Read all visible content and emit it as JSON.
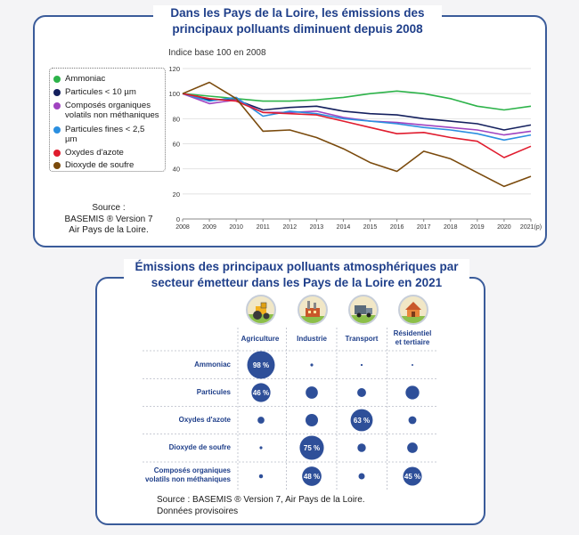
{
  "chart1": {
    "title": "Dans les Pays de la Loire, les émissions des principaux polluants diminuent depuis 2008",
    "subtitle": "Indice base 100 en 2008",
    "source": "Source :\nBASEMIS ® Version 7\nAir Pays de la Loire."
  },
  "chart2": {
    "title": "Émissions des principaux polluants atmosphériques par secteur émetteur dans les Pays de la Loire en 2021",
    "source": "Source : BASEMIS ® Version 7, Air Pays de la Loire.\nDonnées provisoires"
  },
  "chart_data": [
    {
      "type": "line",
      "title": "Dans les Pays de la Loire, les émissions des principaux polluants diminuent depuis 2008",
      "ylabel": "Indice base 100 en 2008",
      "x": [
        "2008",
        "2009",
        "2010",
        "2011",
        "2012",
        "2013",
        "2014",
        "2015",
        "2016",
        "2017",
        "2018",
        "2019",
        "2020",
        "2021(p)"
      ],
      "ylim": [
        0,
        120
      ],
      "yticks": [
        0,
        20,
        40,
        60,
        80,
        100,
        120
      ],
      "series": [
        {
          "name": "Ammoniac",
          "color": "#2db34a",
          "values": [
            100,
            98,
            96,
            94,
            94,
            95,
            97,
            100,
            102,
            100,
            96,
            90,
            87,
            90
          ]
        },
        {
          "name": "Particules < 10 µm",
          "color": "#14205e",
          "values": [
            100,
            95,
            95,
            87,
            89,
            90,
            86,
            84,
            83,
            80,
            78,
            76,
            71,
            75
          ]
        },
        {
          "name": "Composés organiques volatils non méthaniques",
          "color": "#a044c0",
          "values": [
            100,
            92,
            95,
            85,
            85,
            86,
            81,
            78,
            77,
            75,
            73,
            71,
            67,
            70
          ]
        },
        {
          "name": "Particules fines < 2,5 µm",
          "color": "#2b8fe0",
          "values": [
            100,
            94,
            97,
            82,
            86,
            84,
            80,
            78,
            76,
            73,
            71,
            68,
            63,
            67
          ]
        },
        {
          "name": "Oxydes d'azote",
          "color": "#e01c2e",
          "values": [
            100,
            96,
            94,
            85,
            84,
            83,
            78,
            73,
            68,
            69,
            65,
            62,
            49,
            58
          ]
        },
        {
          "name": "Dioxyde de soufre",
          "color": "#7a4a0c",
          "values": [
            100,
            109,
            96,
            70,
            71,
            65,
            56,
            45,
            38,
            54,
            48,
            37,
            26,
            34
          ]
        }
      ]
    },
    {
      "type": "bubble",
      "title": "Émissions des principaux polluants atmosphériques par secteur émetteur dans les Pays de la Loire en 2021",
      "columns": [
        "Agriculture",
        "Industrie",
        "Transport",
        "Résidentiel\net tertiaire"
      ],
      "rows": [
        "Ammoniac",
        "Particules",
        "Oxydes d'azote",
        "Dioxyde de soufre",
        "Composés organiques\nvolatils non méthaniques"
      ],
      "values": [
        [
          98,
          1,
          0.5,
          0.3
        ],
        [
          46,
          19,
          10,
          24
        ],
        [
          6,
          20,
          63,
          8
        ],
        [
          1,
          75,
          9,
          14
        ],
        [
          2,
          48,
          5,
          45
        ]
      ],
      "labels": [
        [
          "98 %",
          "",
          "",
          ""
        ],
        [
          "46 %",
          "",
          "",
          ""
        ],
        [
          "",
          "",
          "63 %",
          ""
        ],
        [
          "",
          "75 %",
          "",
          ""
        ],
        [
          "",
          "48 %",
          "",
          "45 %"
        ]
      ],
      "bubble_color": "#2e4f99"
    }
  ]
}
